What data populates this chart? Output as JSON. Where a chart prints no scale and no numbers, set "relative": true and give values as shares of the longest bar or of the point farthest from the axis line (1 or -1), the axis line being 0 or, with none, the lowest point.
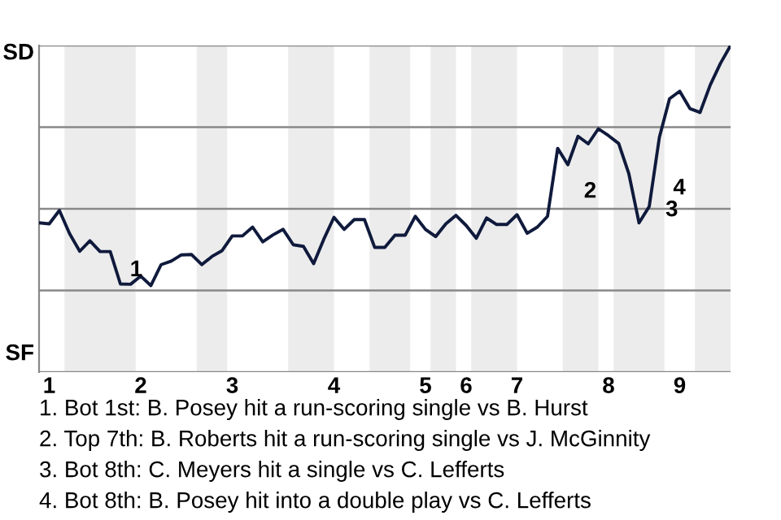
{
  "chart_data": {
    "type": "line",
    "relative": true,
    "categories": [
      null,
      "1",
      null,
      null,
      null,
      null,
      null,
      null,
      null,
      null,
      "2",
      null,
      null,
      null,
      null,
      null,
      null,
      null,
      null,
      "3",
      null,
      null,
      null,
      null,
      null,
      null,
      null,
      null,
      null,
      "4",
      null,
      null,
      null,
      null,
      null,
      null,
      null,
      null,
      "5",
      null,
      null,
      null,
      "6",
      null,
      null,
      null,
      null,
      "7",
      null,
      null,
      null,
      null,
      null,
      null,
      null,
      null,
      "8",
      null,
      null,
      null,
      null,
      null,
      null,
      "9",
      null,
      null,
      null,
      null,
      null
    ],
    "series": [
      {
        "color": "#0f1a3c",
        "values": [
          0.457,
          0.454,
          0.495,
          0.424,
          0.37,
          0.402,
          0.369,
          0.369,
          0.27,
          0.269,
          0.294,
          0.265,
          0.329,
          0.34,
          0.359,
          0.36,
          0.329,
          0.354,
          0.372,
          0.417,
          0.417,
          0.444,
          0.399,
          0.42,
          0.437,
          0.39,
          0.385,
          0.332,
          0.407,
          0.474,
          0.437,
          0.467,
          0.467,
          0.382,
          0.382,
          0.419,
          0.419,
          0.477,
          0.437,
          0.415,
          0.454,
          0.48,
          0.449,
          0.41,
          0.472,
          0.452,
          0.452,
          0.482,
          0.425,
          0.444,
          0.477,
          0.685,
          0.635,
          0.722,
          0.699,
          0.745,
          0.724,
          0.7,
          0.607,
          0.457,
          0.507,
          0.719,
          0.837,
          0.86,
          0.807,
          0.795,
          0.879,
          0.945,
          1
        ]
      }
    ],
    "grid": "y",
    "annotations": [
      {
        "text": "1",
        "y": 0.27
      },
      "2",
      "3",
      "4",
      "SD",
      "SF",
      "1. Bot 1st: B. Posey hit a run-scoring single vs B. Hurst",
      "2. Top 7th: B. Roberts hit a run-scoring single vs J. McGinnity",
      "3. Bot 8th: C. Meyers hit a single vs C. Lefferts",
      "4. Bot 8th: B. Posey hit into a double play vs C. Lefferts"
    ],
    "legend": false,
    "marker": "none",
    "line_style": "solid"
  }
}
